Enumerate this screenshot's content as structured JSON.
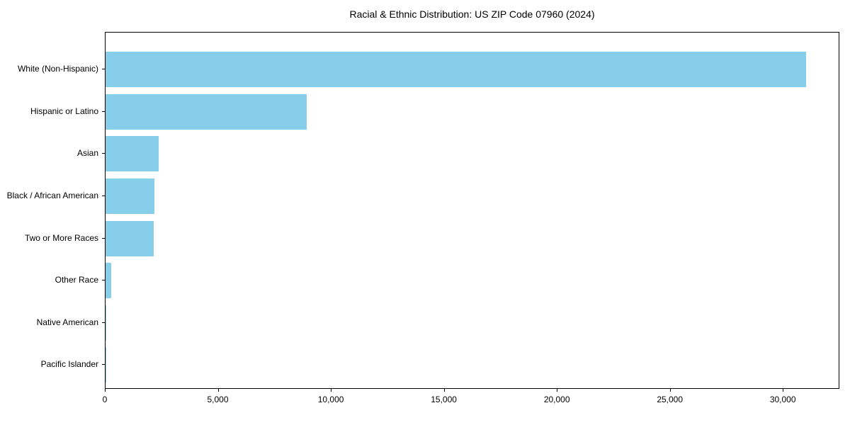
{
  "title": "Racial & Ethnic Distribution: US ZIP Code 07960 (2024)",
  "colors": {
    "bar": "#87CEEB",
    "axis": "#000000",
    "background": "#FFFFFF",
    "text": "#000000"
  },
  "chart_data": {
    "type": "bar",
    "orientation": "horizontal",
    "title": "Racial & Ethnic Distribution: US ZIP Code 07960 (2024)",
    "categories": [
      "White (Non-Hispanic)",
      "Hispanic or Latino",
      "Asian",
      "Black / African American",
      "Two or More Races",
      "Other Race",
      "Native American",
      "Pacific Islander"
    ],
    "values": [
      31000,
      8900,
      2350,
      2170,
      2120,
      240,
      20,
      5
    ],
    "xlabel": "",
    "ylabel": "",
    "xlim": [
      0,
      32500
    ],
    "xticks": [
      0,
      5000,
      10000,
      15000,
      20000,
      25000,
      30000
    ],
    "xtick_labels": [
      "0",
      "5,000",
      "10,000",
      "15,000",
      "20,000",
      "25,000",
      "30,000"
    ],
    "grid": false,
    "legend": false,
    "bar_color": "#87CEEB",
    "largest_category_first": true
  }
}
